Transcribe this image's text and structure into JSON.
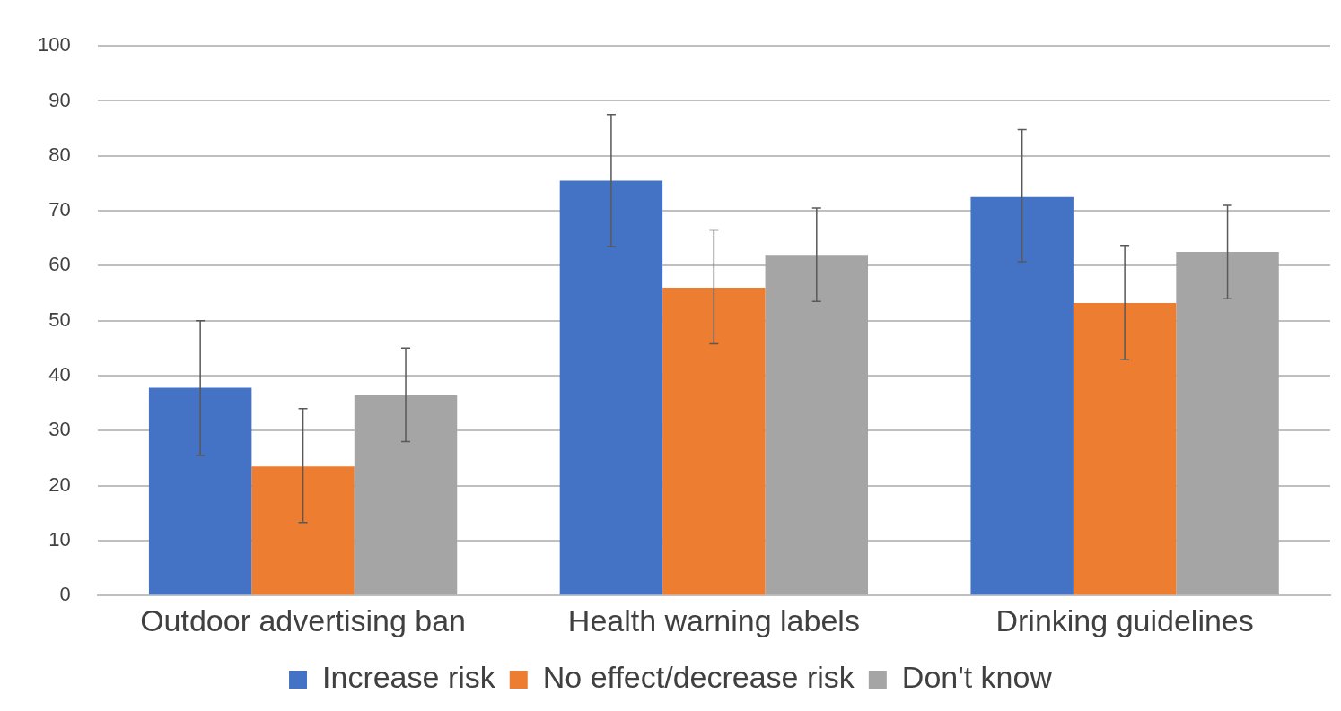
{
  "chart_data": {
    "type": "bar",
    "categories": [
      "Outdoor advertising ban",
      "Health warning labels",
      "Drinking guidelines"
    ],
    "series": [
      {
        "name": "Increase risk",
        "color": "#4472c4",
        "values": [
          37.8,
          75.5,
          72.5
        ],
        "errors": [
          [
            25.5,
            50
          ],
          [
            63.5,
            87.5
          ],
          [
            60.7,
            84.8
          ]
        ]
      },
      {
        "name": "No effect/decrease risk",
        "color": "#ed7d31",
        "values": [
          23.5,
          56,
          53.2
        ],
        "errors": [
          [
            13.3,
            34
          ],
          [
            45.8,
            66.5
          ],
          [
            42.9,
            63.7
          ]
        ]
      },
      {
        "name": "Don't know",
        "color": "#a5a5a5",
        "values": [
          36.5,
          62,
          62.5
        ],
        "errors": [
          [
            28,
            45
          ],
          [
            53.5,
            70.5
          ],
          [
            54,
            71
          ]
        ]
      }
    ],
    "ylim": [
      0,
      100
    ],
    "yticks": [
      0,
      10,
      20,
      30,
      40,
      50,
      60,
      70,
      80,
      90,
      100
    ],
    "grid": "y",
    "legend": "bottom"
  }
}
